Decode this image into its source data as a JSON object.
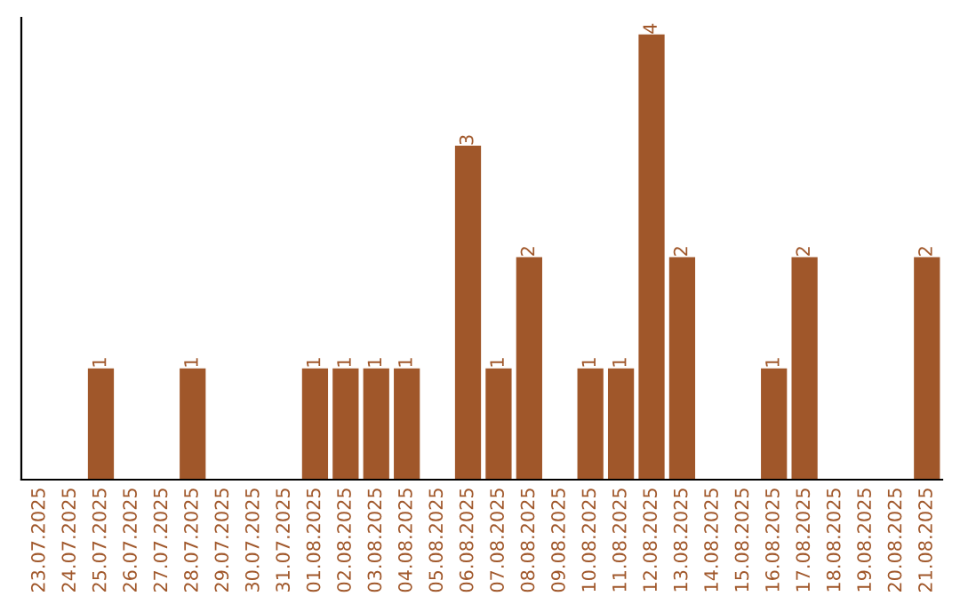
{
  "chart_data": {
    "type": "bar",
    "categories": [
      "23.07.2025",
      "24.07.2025",
      "25.07.2025",
      "26.07.2025",
      "27.07.2025",
      "28.07.2025",
      "29.07.2025",
      "30.07.2025",
      "31.07.2025",
      "01.08.2025",
      "02.08.2025",
      "03.08.2025",
      "04.08.2025",
      "05.08.2025",
      "06.08.2025",
      "07.08.2025",
      "08.08.2025",
      "09.08.2025",
      "10.08.2025",
      "11.08.2025",
      "12.08.2025",
      "13.08.2025",
      "14.08.2025",
      "15.08.2025",
      "16.08.2025",
      "17.08.2025",
      "18.08.2025",
      "19.08.2025",
      "20.08.2025",
      "21.08.2025"
    ],
    "values": [
      0,
      0,
      1,
      0,
      0,
      1,
      0,
      0,
      0,
      1,
      1,
      1,
      1,
      0,
      3,
      1,
      2,
      0,
      1,
      1,
      4,
      2,
      0,
      0,
      1,
      2,
      0,
      0,
      0,
      2
    ],
    "value_labels": [
      null,
      null,
      "1",
      null,
      null,
      "1",
      null,
      null,
      null,
      "1",
      "1",
      "1",
      "1",
      null,
      "3",
      "1",
      "2",
      null,
      "1",
      "1",
      "4",
      "2",
      null,
      null,
      "1",
      "2",
      null,
      null,
      null,
      "2"
    ],
    "color": "#a0572a",
    "ylim": [
      0,
      4.15
    ],
    "tick_labels": "x",
    "grid": false,
    "legend": false
  }
}
